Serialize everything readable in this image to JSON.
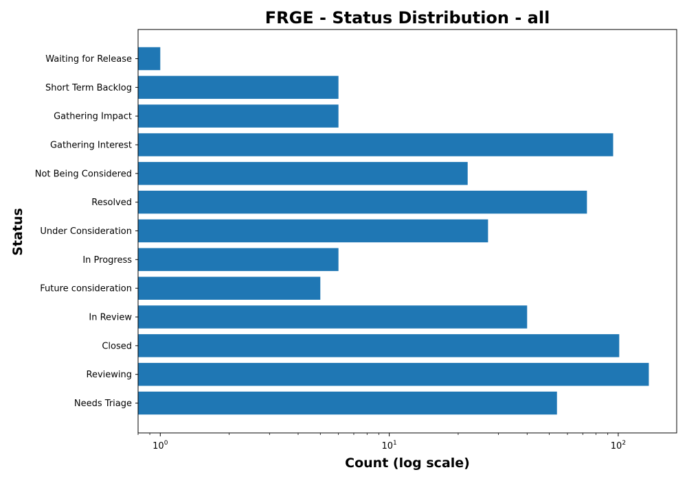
{
  "chart_data": {
    "type": "bar",
    "orientation": "horizontal",
    "title": "FRGE - Status Distribution - all",
    "xlabel": "Count (log scale)",
    "ylabel": "Status",
    "x_scale": "log",
    "xlim": [
      0.8,
      180
    ],
    "x_ticks": [
      {
        "value": 1,
        "base": "10",
        "exp": "0"
      },
      {
        "value": 10,
        "base": "10",
        "exp": "1"
      },
      {
        "value": 100,
        "base": "10",
        "exp": "2"
      }
    ],
    "categories": [
      "Waiting for Release",
      "Short Term Backlog",
      "Gathering Impact",
      "Gathering Interest",
      "Not Being Considered",
      "Resolved",
      "Under Consideration",
      "In Progress",
      "Future consideration",
      "In Review",
      "Closed",
      "Reviewing",
      "Needs Triage"
    ],
    "values": [
      1,
      6,
      6,
      95,
      22,
      73,
      27,
      6,
      5,
      40,
      101,
      136,
      54
    ],
    "bar_color": "#1f77b4",
    "grid": false,
    "legend": false
  }
}
